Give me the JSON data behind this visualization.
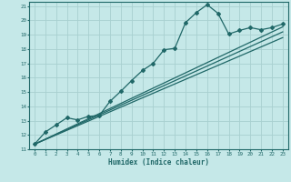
{
  "title": "",
  "xlabel": "Humidex (Indice chaleur)",
  "ylabel": "",
  "xlim": [
    -0.5,
    23.5
  ],
  "ylim": [
    11,
    21.3
  ],
  "xticks": [
    0,
    1,
    2,
    3,
    4,
    5,
    6,
    7,
    8,
    9,
    10,
    11,
    12,
    13,
    14,
    15,
    16,
    17,
    18,
    19,
    20,
    21,
    22,
    23
  ],
  "yticks": [
    11,
    12,
    13,
    14,
    15,
    16,
    17,
    18,
    19,
    20,
    21
  ],
  "bg_color": "#c5e8e8",
  "grid_color": "#a8d0d0",
  "line_color": "#206868",
  "curve1_x": [
    0,
    1,
    2,
    3,
    4,
    5,
    6,
    7,
    8,
    9,
    10,
    11,
    12,
    13,
    14,
    15,
    16,
    17,
    18,
    19,
    20,
    21,
    22,
    23
  ],
  "curve1_y": [
    11.35,
    12.2,
    12.7,
    13.2,
    13.05,
    13.3,
    13.35,
    14.35,
    15.05,
    15.8,
    16.5,
    17.0,
    17.95,
    18.05,
    19.85,
    20.55,
    21.1,
    20.5,
    19.05,
    19.3,
    19.5,
    19.35,
    19.5,
    19.75
  ],
  "line1_x": [
    0,
    23
  ],
  "line1_y": [
    11.35,
    18.8
  ],
  "line2_x": [
    0,
    23
  ],
  "line2_y": [
    11.35,
    19.2
  ],
  "line3_x": [
    0,
    23
  ],
  "line3_y": [
    11.35,
    19.55
  ]
}
